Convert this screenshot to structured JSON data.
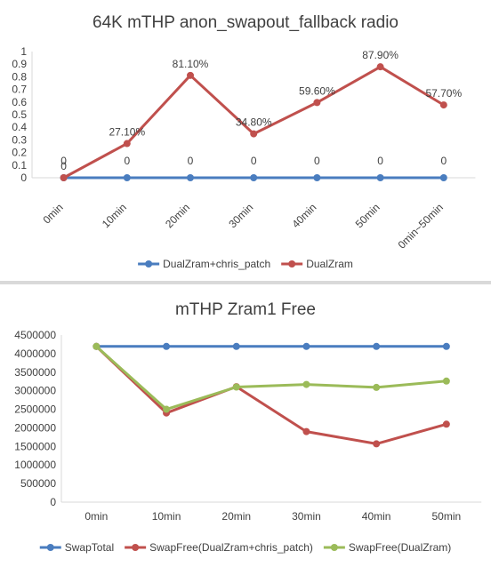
{
  "chart_data": [
    {
      "type": "line",
      "title": "64K mTHP anon_swapout_fallback radio",
      "categories": [
        "0min",
        "10min",
        "20min",
        "30min",
        "40min",
        "50min",
        "0min~50min"
      ],
      "ylim": [
        0,
        1
      ],
      "yticks": [
        "0",
        "0.1",
        "0.2",
        "0.3",
        "0.4",
        "0.5",
        "0.6",
        "0.7",
        "0.8",
        "0.9",
        "1"
      ],
      "grid": false,
      "legend_position": "bottom",
      "series": [
        {
          "name": "DualZram+chris_patch",
          "color": "#4a7dbf",
          "values": [
            0,
            0,
            0,
            0,
            0,
            0,
            0
          ],
          "labels": [
            "0",
            "0",
            "0",
            "0",
            "0",
            "0",
            "0"
          ]
        },
        {
          "name": "DualZram",
          "color": "#c0504d",
          "values": [
            0,
            0.271,
            0.811,
            0.348,
            0.596,
            0.879,
            0.577
          ],
          "labels": [
            "0",
            "27.10%",
            "81.10%",
            "34.80%",
            "59.60%",
            "87.90%",
            "57.70%"
          ]
        }
      ]
    },
    {
      "type": "line",
      "title": "mTHP Zram1 Free",
      "categories": [
        "0min",
        "10min",
        "20min",
        "30min",
        "40min",
        "50min"
      ],
      "ylim": [
        0,
        4500000
      ],
      "yticks": [
        "0",
        "500000",
        "1000000",
        "1500000",
        "2000000",
        "2500000",
        "3000000",
        "3500000",
        "4000000",
        "4500000"
      ],
      "grid": false,
      "legend_position": "bottom",
      "series": [
        {
          "name": "SwapTotal",
          "color": "#4a7dbf",
          "values": [
            4194300,
            4194300,
            4194300,
            4194300,
            4194300,
            4194300
          ]
        },
        {
          "name": "SwapFree(DualZram+chris_patch)",
          "color": "#c0504d",
          "values": [
            4194300,
            2400000,
            3110000,
            1900000,
            1570000,
            2100000
          ]
        },
        {
          "name": "SwapFree(DualZram)",
          "color": "#9bbb59",
          "values": [
            4194300,
            2500000,
            3100000,
            3170000,
            3090000,
            3260000
          ]
        }
      ]
    }
  ]
}
